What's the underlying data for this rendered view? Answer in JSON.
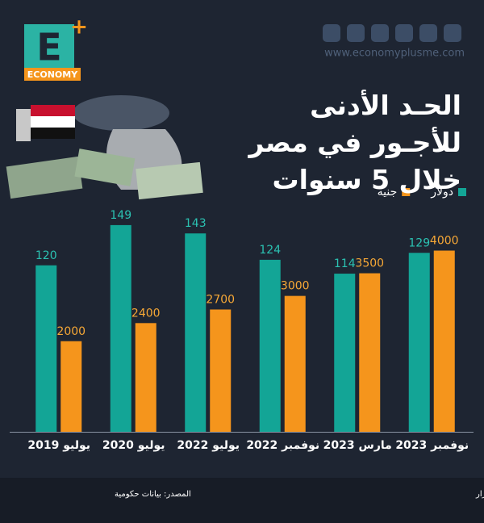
{
  "brand": {
    "logo_letter": "E",
    "logo_word": "ECONOMY",
    "website": "www.economyplusme.com"
  },
  "chart_data": {
    "type": "bar",
    "title": "الحـد الأدنى للأجـور في مصر خلال 5 سنوات",
    "categories": [
      "يوليو 2019",
      "يوليو 2020",
      "يوليو 2022",
      "نوفمبر 2022",
      "مارس 2023",
      "نوفمبر 2023"
    ],
    "series": [
      {
        "name": "دولار",
        "color": "#13a596",
        "label_color": "#2bc2b2",
        "values": [
          120,
          149,
          143,
          124,
          114,
          129
        ]
      },
      {
        "name": "جنيه",
        "color": "#f5951c",
        "label_color": "#f7a836",
        "axis": "y2",
        "values": [
          2000,
          2400,
          2700,
          3000,
          3500,
          4000
        ]
      }
    ],
    "ylim": [
      0,
      160
    ],
    "y2lim": [
      0,
      4900
    ],
    "legend": "top-right",
    "note": "ملحوظة: تم حساب الأجور بالدولار طبقا لسعر العملة الرسمي في بداية تطبيق القرار",
    "source": "المصدر: بيانات حكومية"
  }
}
